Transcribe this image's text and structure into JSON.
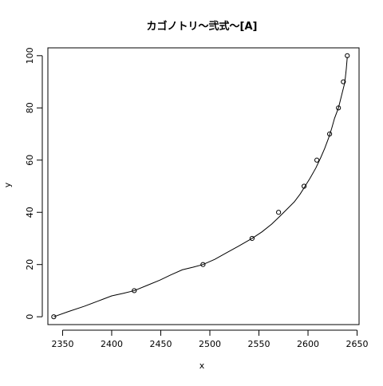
{
  "chart_data": {
    "type": "scatter",
    "title": "カゴノトリ〜弐式〜[A]",
    "xlabel": "x",
    "ylabel": "y",
    "xlim": [
      2335,
      2652
    ],
    "ylim": [
      -3,
      103
    ],
    "x_ticks": [
      2350,
      2400,
      2450,
      2500,
      2550,
      2600,
      2650
    ],
    "y_ticks": [
      0,
      20,
      40,
      60,
      80,
      100
    ],
    "grid": false,
    "legend": "none",
    "colors": {
      "points": "#000000",
      "line": "#000000",
      "axes": "#000000",
      "background": "#ffffff"
    },
    "points": {
      "x": [
        2341,
        2423,
        2493,
        2543,
        2570,
        2596,
        2609,
        2622,
        2631,
        2636,
        2640
      ],
      "y": [
        0,
        10,
        20,
        30,
        40,
        50,
        60,
        70,
        80,
        90,
        100
      ]
    },
    "fit_curve": {
      "x": [
        2341,
        2356,
        2372,
        2386,
        2400,
        2412,
        2423,
        2436,
        2449,
        2460,
        2472,
        2483,
        2493,
        2505,
        2517,
        2529,
        2543,
        2553,
        2563,
        2570,
        2578,
        2586,
        2592,
        2597,
        2602,
        2608,
        2613,
        2617,
        2621,
        2624,
        2627,
        2631,
        2633,
        2635,
        2637,
        2638,
        2639,
        2640
      ],
      "y": [
        0,
        2,
        4,
        6,
        8,
        9,
        10,
        12,
        14,
        16,
        18,
        19,
        20,
        22,
        24.5,
        27,
        30,
        32.5,
        35.5,
        38,
        41,
        44,
        47,
        50,
        53,
        57,
        61,
        64.5,
        68.5,
        72,
        76,
        80,
        83,
        86,
        89,
        91.5,
        95,
        99.5
      ]
    }
  }
}
